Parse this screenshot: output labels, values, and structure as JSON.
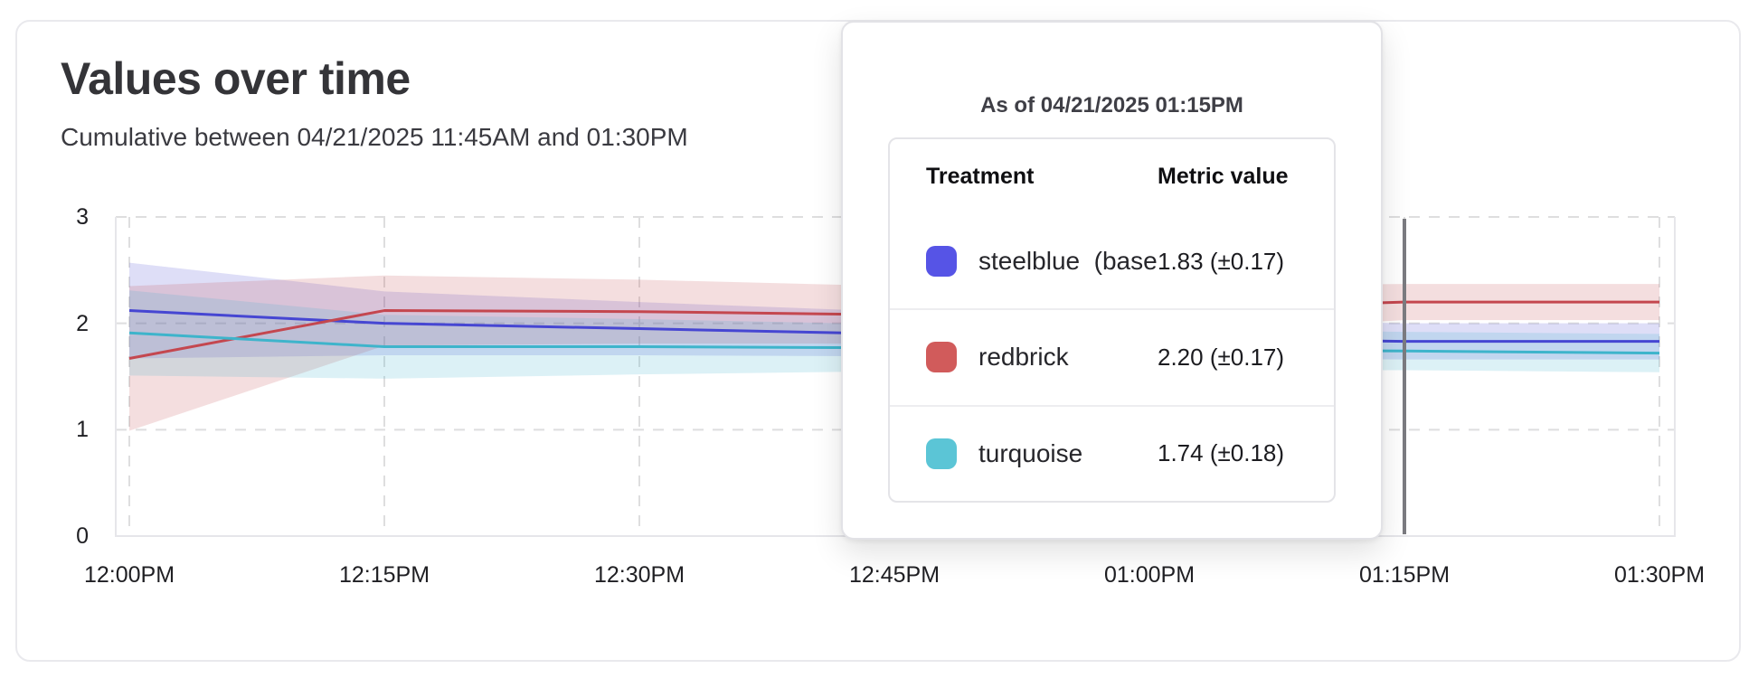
{
  "card": {
    "title": "Values over time",
    "subtitle": "Cumulative between 04/21/2025 11:45AM and 01:30PM"
  },
  "tooltip": {
    "title": "As of 04/21/2025 01:15PM",
    "columns": [
      "Treatment",
      "Metric value"
    ],
    "rows": [
      {
        "label": "steelblue  (baseli",
        "value": "1.83 (±0.17)",
        "color": "#5654e6"
      },
      {
        "label": "redbrick",
        "value": "2.20 (±0.17)",
        "color": "#d15b5b"
      },
      {
        "label": "turquoise",
        "value": "1.74 (±0.18)",
        "color": "#5bc5d6"
      }
    ]
  },
  "chart_data": {
    "type": "line",
    "title": "Values over time",
    "subtitle": "Cumulative between 04/21/2025 11:45AM and 01:30PM",
    "x_labels": [
      "12:00PM",
      "12:15PM",
      "12:30PM",
      "12:45PM",
      "01:00PM",
      "01:15PM",
      "01:30PM"
    ],
    "y_ticks": [
      "0",
      "1",
      "2",
      "3"
    ],
    "ylim": [
      0,
      3
    ],
    "grid": "dashed",
    "legend_position": "none",
    "hover_marker_x": "01:15PM",
    "hover_marker_color": "#7b7b80",
    "series": [
      {
        "name": "steelblue (baseline)",
        "line_color": "#4646d2",
        "band_alpha": 0.18,
        "values": [
          2.12,
          2.0,
          1.95,
          1.9,
          1.86,
          1.83,
          1.83
        ],
        "ci": [
          0.45,
          0.3,
          0.25,
          0.21,
          0.19,
          0.17,
          0.17
        ]
      },
      {
        "name": "redbrick",
        "line_color": "#c4474f",
        "band_alpha": 0.18,
        "values": [
          1.67,
          2.12,
          2.11,
          2.08,
          2.13,
          2.2,
          2.2
        ],
        "ci": [
          0.68,
          0.33,
          0.3,
          0.27,
          0.22,
          0.17,
          0.17
        ]
      },
      {
        "name": "turquoise",
        "line_color": "#3eb4cb",
        "band_alpha": 0.18,
        "values": [
          1.91,
          1.78,
          1.78,
          1.77,
          1.75,
          1.74,
          1.72
        ],
        "ci": [
          0.4,
          0.3,
          0.26,
          0.22,
          0.2,
          0.18,
          0.18
        ]
      }
    ]
  }
}
